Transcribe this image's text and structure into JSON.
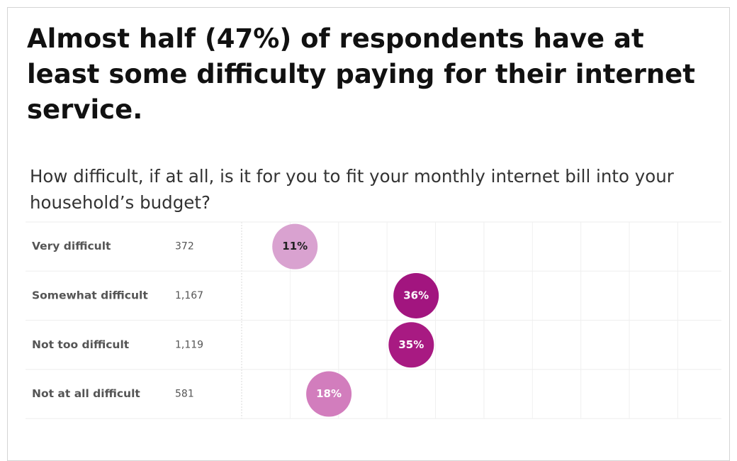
{
  "chart_data": {
    "type": "dot",
    "title": "Almost half (47%) of respondents have at least some difficulty paying for their internet service.",
    "subtitle": "How difficult, if at all, is it for you to fit your monthly internet bill into your household’s budget?",
    "categories": [
      "Very difficult",
      "Somewhat difficult",
      "Not too difficult",
      "Not at all difficult"
    ],
    "counts": [
      "372",
      "1,167",
      "1,119",
      "581"
    ],
    "values": [
      11,
      36,
      35,
      18
    ],
    "value_labels": [
      "11%",
      "36%",
      "35%",
      "18%"
    ],
    "colors": [
      "#d9a2d0",
      "#a2157f",
      "#a81a82",
      "#d27dbd"
    ],
    "label_colors": [
      "#222222",
      "#ffffff",
      "#ffffff",
      "#ffffff"
    ],
    "xlim": [
      0,
      99
    ],
    "xticks": [
      0,
      10,
      20,
      30,
      40,
      50,
      60,
      70,
      80,
      90
    ],
    "grid": true
  }
}
